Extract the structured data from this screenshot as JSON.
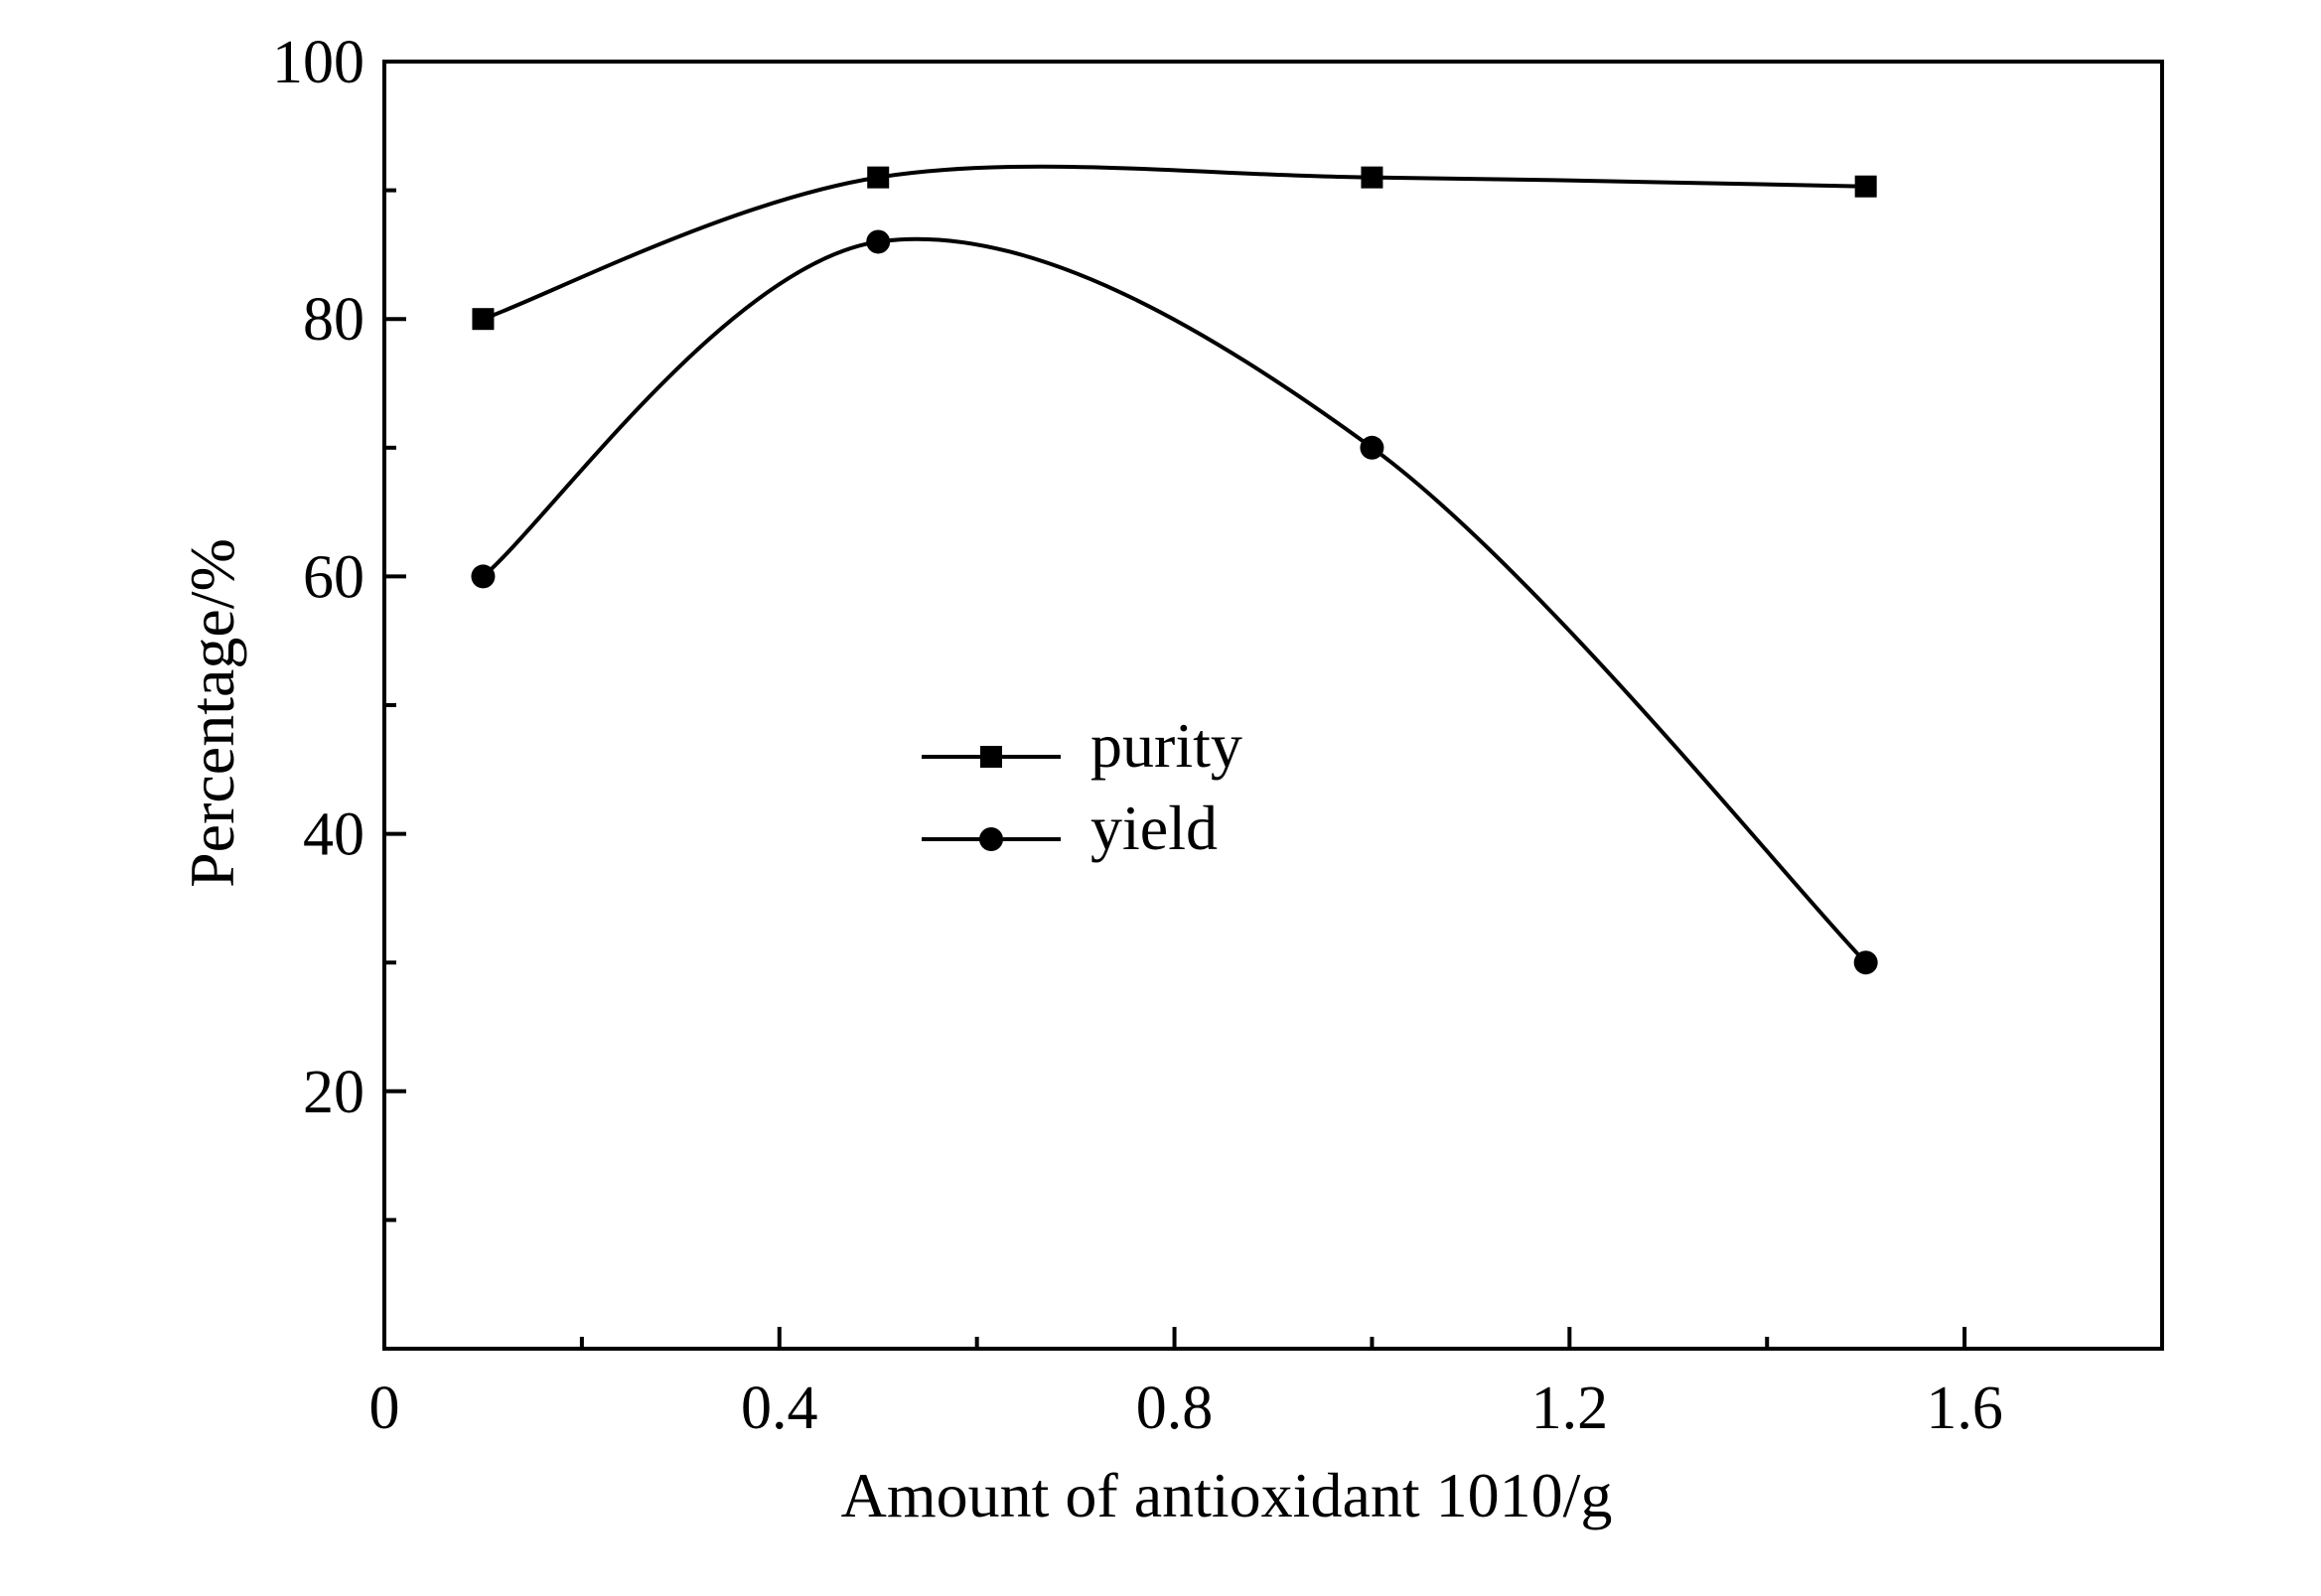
{
  "chart_data": {
    "type": "line",
    "title": "",
    "xlabel": "Amount of antioxidant 1010/g",
    "ylabel": "Percentage/%",
    "xlim": [
      0,
      1.8
    ],
    "ylim": [
      0,
      100
    ],
    "x_ticks": [
      0,
      0.4,
      0.8,
      1.2,
      1.6
    ],
    "x_tick_labels": [
      "0",
      "0.4",
      "0.8",
      "1.2",
      "1.6"
    ],
    "x_minor_ticks": [
      0.2,
      0.6,
      1.0,
      1.4
    ],
    "y_ticks": [
      20,
      40,
      60,
      80,
      100
    ],
    "y_tick_labels": [
      "20",
      "40",
      "60",
      "80",
      "100"
    ],
    "y_minor_ticks": [
      10,
      30,
      50,
      70,
      90
    ],
    "grid": false,
    "legend_position": "center",
    "series": [
      {
        "name": "purity",
        "marker": "square",
        "color": "#000000",
        "x": [
          0.1,
          0.5,
          1.0,
          1.5
        ],
        "y": [
          80,
          91,
          91,
          90.3
        ]
      },
      {
        "name": "yield",
        "marker": "circle",
        "color": "#000000",
        "x": [
          0.1,
          0.5,
          1.0,
          1.5
        ],
        "y": [
          60,
          86,
          70,
          30
        ]
      }
    ]
  }
}
